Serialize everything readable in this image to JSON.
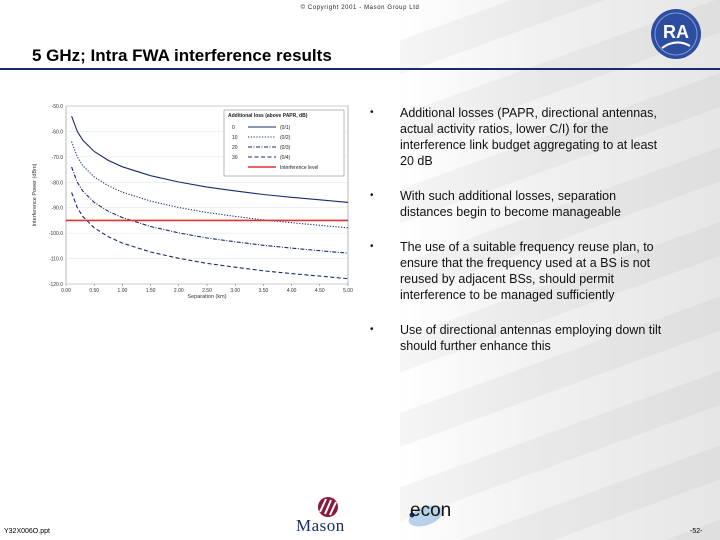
{
  "header": {
    "copyright": "© Copyright 2001 - Mason Group Ltd",
    "title": "5 GHz; Intra FWA interference results",
    "logo_text": "RA"
  },
  "bullets": [
    "Additional losses (PAPR, directional antennas, actual activity ratios, lower C/I) for the interference link budget aggregating to at least 20 dB",
    "With such additional losses, separation distances begin to become manageable",
    "The use of a suitable frequency reuse plan, to ensure that the frequency used at a BS is not reused by adjacent BSs, should permit interference to be managed sufficiently",
    "Use of directional antennas employing down tilt should further enhance this"
  ],
  "footer": {
    "doc_id": "Y32X006O.ppt",
    "page": "-52-",
    "mason": "Mason",
    "econ": "econ"
  },
  "colors": {
    "accent": "#1a2b6d",
    "interference": "#e03030"
  },
  "chart_data": {
    "type": "line",
    "xlabel": "Separation (km)",
    "ylabel": "Interference Power (dBm)",
    "xlim": [
      0,
      5
    ],
    "ylim": [
      -120,
      -50
    ],
    "x_ticks": [
      "0.00",
      "0.50",
      "1.00",
      "1.50",
      "2.00",
      "2.50",
      "3.00",
      "3.50",
      "4.00",
      "4.50",
      "5.00"
    ],
    "y_ticks": [
      "-50.0",
      "-60.0",
      "-70.0",
      "-80.0",
      "-90.0",
      "-100.0",
      "-110.0",
      "-120.0"
    ],
    "legend_title": "Additional loss (above PAPR, dB)",
    "legend_position": "top-right",
    "footnote": "Interference Level",
    "series": [
      {
        "name": "(0/1)",
        "loss": "0",
        "style": "solid",
        "color": "#1a2b6d",
        "x": [
          0.1,
          0.2,
          0.3,
          0.5,
          0.75,
          1.0,
          1.5,
          2.0,
          2.5,
          3.0,
          3.5,
          4.0,
          4.5,
          5.0
        ],
        "y": [
          -54.0,
          -60.0,
          -63.5,
          -67.9,
          -71.4,
          -73.9,
          -77.4,
          -79.9,
          -81.9,
          -83.4,
          -84.8,
          -85.9,
          -86.9,
          -87.9
        ]
      },
      {
        "name": "(0/2)",
        "loss": "10",
        "style": "dotted",
        "color": "#1a2b6d",
        "x": [
          0.1,
          0.2,
          0.3,
          0.5,
          0.75,
          1.0,
          1.5,
          2.0,
          2.5,
          3.0,
          3.5,
          4.0,
          4.5,
          5.0
        ],
        "y": [
          -64.0,
          -70.0,
          -73.5,
          -77.9,
          -81.4,
          -83.9,
          -87.4,
          -89.9,
          -91.9,
          -93.4,
          -94.8,
          -95.9,
          -96.9,
          -97.9
        ]
      },
      {
        "name": "(0/3)",
        "loss": "20",
        "style": "dash-dot",
        "color": "#1a2b6d",
        "x": [
          0.1,
          0.2,
          0.3,
          0.5,
          0.75,
          1.0,
          1.5,
          2.0,
          2.5,
          3.0,
          3.5,
          4.0,
          4.5,
          5.0
        ],
        "y": [
          -74.0,
          -80.0,
          -83.5,
          -87.9,
          -91.4,
          -93.9,
          -97.4,
          -99.9,
          -101.9,
          -103.4,
          -104.8,
          -105.9,
          -106.9,
          -107.9
        ]
      },
      {
        "name": "(0/4)",
        "loss": "30",
        "style": "dashed",
        "color": "#1a2b6d",
        "x": [
          0.1,
          0.2,
          0.3,
          0.5,
          0.75,
          1.0,
          1.5,
          2.0,
          2.5,
          3.0,
          3.5,
          4.0,
          4.5,
          5.0
        ],
        "y": [
          -84.0,
          -90.0,
          -93.5,
          -97.9,
          -101.4,
          -103.9,
          -107.4,
          -109.9,
          -111.9,
          -113.4,
          -114.8,
          -115.9,
          -116.9,
          -117.9
        ]
      },
      {
        "name": "Interference level",
        "loss": "",
        "style": "solid",
        "color": "#e03030",
        "x": [
          0,
          5
        ],
        "y": [
          -95.0,
          -95.0
        ]
      }
    ]
  }
}
